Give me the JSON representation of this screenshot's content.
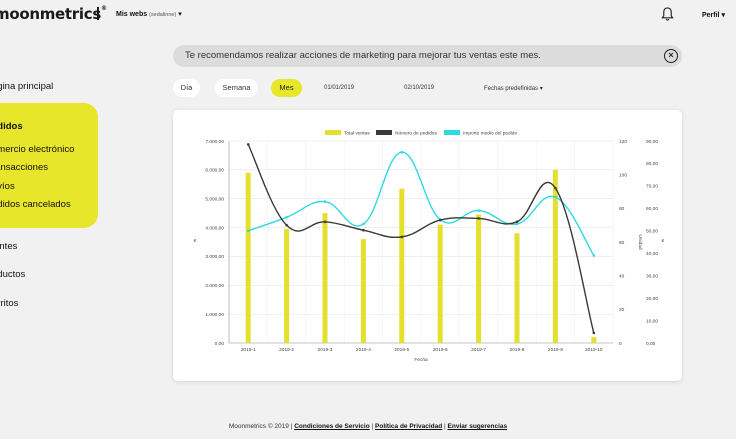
{
  "header": {
    "logo": "moonmetrics",
    "logo_mark": "®",
    "webs_label": "Mis webs",
    "webs_sub": "(sedalinne)",
    "profile_label": "Perfil"
  },
  "sidebar": {
    "items": [
      {
        "label": "ágina principal"
      },
      {
        "label": "edidos"
      },
      {
        "label": "omercio electrónico"
      },
      {
        "label": "ransacciones"
      },
      {
        "label": "nvíos"
      },
      {
        "label": "edidos cancelados"
      },
      {
        "label": "ientes"
      },
      {
        "label": "oductos"
      },
      {
        "label": "arritos"
      }
    ]
  },
  "banner": {
    "text": "Te recomendamos realizar acciones de marketing para mejorar tus ventas este mes."
  },
  "filters": {
    "tabs": [
      {
        "label": "Día"
      },
      {
        "label": "Semana"
      },
      {
        "label": "Mes"
      }
    ],
    "active_tab": "Mes",
    "date_from": "01/01/2019",
    "date_to": "02/10/2019",
    "predefined": "Fechas predefinidas"
  },
  "colors": {
    "accent": "#e8e62a",
    "bars": "#e4e02d",
    "orders_line": "#3a3a32",
    "avg_line": "#2ed9e3"
  },
  "chart_data": {
    "type": "bar",
    "categories": [
      "2019-1",
      "2019-2",
      "2019-3",
      "2019-4",
      "2019-5",
      "2019-6",
      "2019-7",
      "2019-8",
      "2019-9",
      "2019-10"
    ],
    "xlabel": "Fecha",
    "ylabel": "€",
    "y2label": "Unidad",
    "y3label": "€",
    "ylim": [
      0,
      7000
    ],
    "y2lim": [
      0,
      120
    ],
    "y3lim": [
      0,
      90
    ],
    "yticks": [
      "0,00",
      "1.000,00",
      "2.000,00",
      "3.000,00",
      "4.000,00",
      "5.000,00",
      "6.000,00",
      "7.000,00"
    ],
    "y2ticks": [
      "0",
      "20",
      "40",
      "60",
      "80",
      "100",
      "120"
    ],
    "y3ticks": [
      "0,00",
      "10,00",
      "20,00",
      "30,00",
      "40,00",
      "50,00",
      "60,00",
      "70,00",
      "80,00",
      "90,00"
    ],
    "legend_position": "top",
    "grid": true,
    "series": [
      {
        "name": "Total ventas",
        "kind": "bar",
        "axis": "left",
        "values": [
          5900,
          3950,
          4500,
          3600,
          5350,
          4100,
          4450,
          3800,
          6000,
          200
        ]
      },
      {
        "name": "Número de pedidos",
        "kind": "line",
        "axis": "right1",
        "values": [
          118,
          70,
          72,
          67,
          63,
          73,
          74,
          72,
          92,
          6
        ]
      },
      {
        "name": "Importe medio del pedido",
        "kind": "line",
        "axis": "right2",
        "values": [
          50,
          56,
          63,
          53,
          85,
          55,
          59,
          53,
          65,
          39
        ]
      }
    ]
  },
  "footer": {
    "copyright": "Moonmetrics © 2019 |",
    "terms": "Condiciones de Servicio",
    "sep1": "|",
    "privacy": "Política de Privacidad",
    "sep2": "|",
    "suggestions": "Enviar sugerencias"
  }
}
